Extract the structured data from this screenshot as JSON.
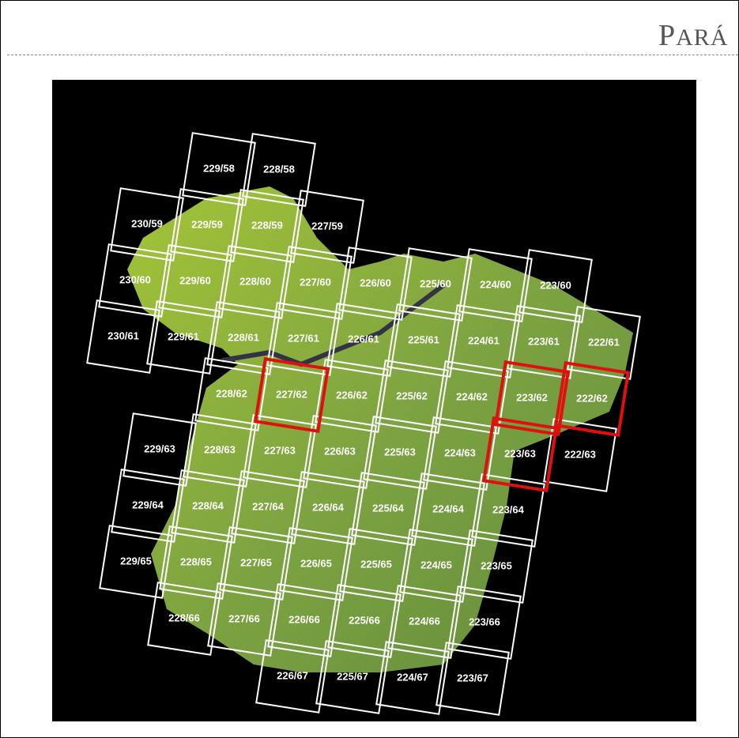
{
  "header": {
    "title": "PARÁ"
  },
  "map": {
    "tiles": [
      {
        "label": "229/58",
        "highlighted": false
      },
      {
        "label": "228/58",
        "highlighted": false
      },
      {
        "label": "230/59",
        "highlighted": false
      },
      {
        "label": "229/59",
        "highlighted": false
      },
      {
        "label": "228/59",
        "highlighted": false
      },
      {
        "label": "227/59",
        "highlighted": false
      },
      {
        "label": "230/60",
        "highlighted": false
      },
      {
        "label": "229/60",
        "highlighted": false
      },
      {
        "label": "228/60",
        "highlighted": false
      },
      {
        "label": "227/60",
        "highlighted": false
      },
      {
        "label": "226/60",
        "highlighted": false
      },
      {
        "label": "225/60",
        "highlighted": false
      },
      {
        "label": "224/60",
        "highlighted": false
      },
      {
        "label": "223/60",
        "highlighted": false
      },
      {
        "label": "230/61",
        "highlighted": false
      },
      {
        "label": "229/61",
        "highlighted": false
      },
      {
        "label": "228/61",
        "highlighted": false
      },
      {
        "label": "227/61",
        "highlighted": false
      },
      {
        "label": "226/61",
        "highlighted": false
      },
      {
        "label": "225/61",
        "highlighted": false
      },
      {
        "label": "224/61",
        "highlighted": false
      },
      {
        "label": "223/61",
        "highlighted": false
      },
      {
        "label": "222/61",
        "highlighted": false
      },
      {
        "label": "228/62",
        "highlighted": false
      },
      {
        "label": "227/62",
        "highlighted": true
      },
      {
        "label": "226/62",
        "highlighted": false
      },
      {
        "label": "225/62",
        "highlighted": false
      },
      {
        "label": "224/62",
        "highlighted": false
      },
      {
        "label": "223/62",
        "highlighted": true
      },
      {
        "label": "222/62",
        "highlighted": true
      },
      {
        "label": "229/63",
        "highlighted": false
      },
      {
        "label": "228/63",
        "highlighted": false
      },
      {
        "label": "227/63",
        "highlighted": false
      },
      {
        "label": "226/63",
        "highlighted": false
      },
      {
        "label": "225/63",
        "highlighted": false
      },
      {
        "label": "224/63",
        "highlighted": false
      },
      {
        "label": "223/63",
        "highlighted": true
      },
      {
        "label": "222/63",
        "highlighted": false
      },
      {
        "label": "229/64",
        "highlighted": false
      },
      {
        "label": "228/64",
        "highlighted": false
      },
      {
        "label": "227/64",
        "highlighted": false
      },
      {
        "label": "226/64",
        "highlighted": false
      },
      {
        "label": "225/64",
        "highlighted": false
      },
      {
        "label": "224/64",
        "highlighted": false
      },
      {
        "label": "223/64",
        "highlighted": false
      },
      {
        "label": "229/65",
        "highlighted": false
      },
      {
        "label": "228/65",
        "highlighted": false
      },
      {
        "label": "227/65",
        "highlighted": false
      },
      {
        "label": "226/65",
        "highlighted": false
      },
      {
        "label": "225/65",
        "highlighted": false
      },
      {
        "label": "224/65",
        "highlighted": false
      },
      {
        "label": "223/65",
        "highlighted": false
      },
      {
        "label": "228/66",
        "highlighted": false
      },
      {
        "label": "227/66",
        "highlighted": false
      },
      {
        "label": "226/66",
        "highlighted": false
      },
      {
        "label": "225/66",
        "highlighted": false
      },
      {
        "label": "224/66",
        "highlighted": false
      },
      {
        "label": "223/66",
        "highlighted": false
      },
      {
        "label": "226/67",
        "highlighted": false
      },
      {
        "label": "225/67",
        "highlighted": false
      },
      {
        "label": "224/67",
        "highlighted": false
      },
      {
        "label": "223/67",
        "highlighted": false
      }
    ]
  }
}
